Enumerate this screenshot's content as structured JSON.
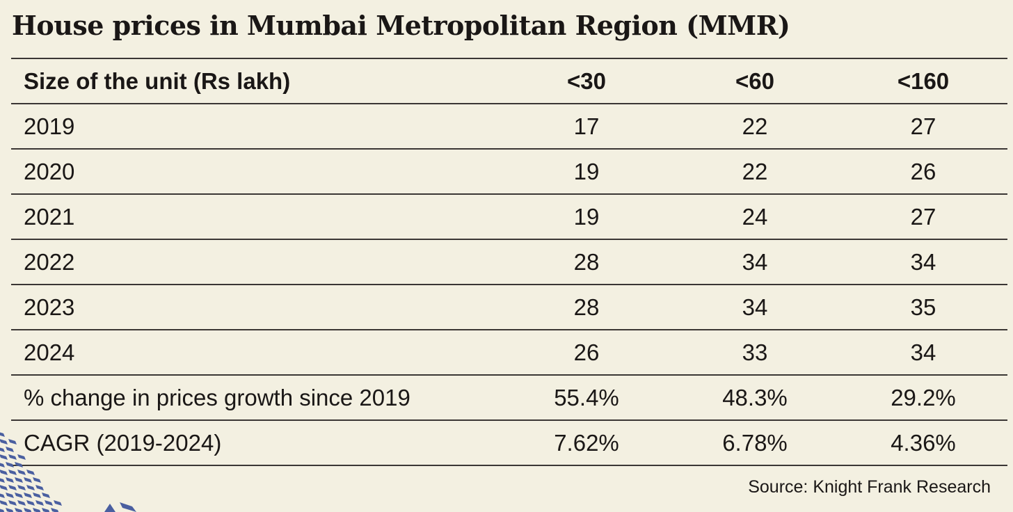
{
  "title": "House prices in Mumbai Metropolitan Region (MMR)",
  "source": "Source: Knight Frank Research",
  "colors": {
    "background": "#f3f0e1",
    "text": "#1a1716",
    "decoration": "#4a5fa0"
  },
  "chart_data": {
    "type": "table",
    "title": "House prices in Mumbai Metropolitan Region (MMR)",
    "header": "Size of the unit (Rs lakh)",
    "columns": [
      "<30",
      "<60",
      "<160"
    ],
    "rows": [
      {
        "label": "2019",
        "values": [
          "17",
          "22",
          "27"
        ]
      },
      {
        "label": "2020",
        "values": [
          "19",
          "22",
          "26"
        ]
      },
      {
        "label": "2021",
        "values": [
          "19",
          "24",
          "27"
        ]
      },
      {
        "label": "2022",
        "values": [
          "28",
          "34",
          "34"
        ]
      },
      {
        "label": "2023",
        "values": [
          "28",
          "34",
          "35"
        ]
      },
      {
        "label": "2024",
        "values": [
          "26",
          "33",
          "34"
        ]
      },
      {
        "label": "% change in prices growth since 2019",
        "values": [
          "55.4%",
          "48.3%",
          "29.2%"
        ]
      },
      {
        "label": "CAGR (2019-2024)",
        "values": [
          "7.62%",
          "6.78%",
          "4.36%"
        ]
      }
    ]
  }
}
